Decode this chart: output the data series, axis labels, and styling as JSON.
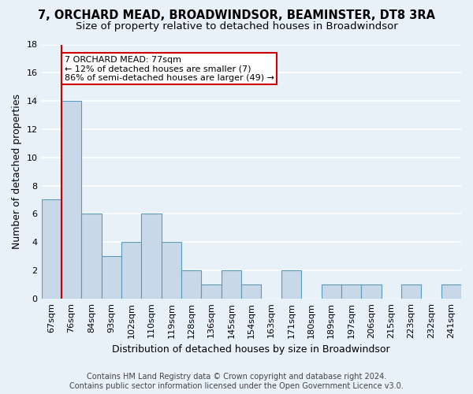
{
  "title": "7, ORCHARD MEAD, BROADWINDSOR, BEAMINSTER, DT8 3RA",
  "subtitle": "Size of property relative to detached houses in Broadwindsor",
  "xlabel": "Distribution of detached houses by size in Broadwindsor",
  "ylabel": "Number of detached properties",
  "footer_line1": "Contains HM Land Registry data © Crown copyright and database right 2024.",
  "footer_line2": "Contains public sector information licensed under the Open Government Licence v3.0.",
  "categories": [
    "67sqm",
    "76sqm",
    "84sqm",
    "93sqm",
    "102sqm",
    "110sqm",
    "119sqm",
    "128sqm",
    "136sqm",
    "145sqm",
    "154sqm",
    "163sqm",
    "171sqm",
    "180sqm",
    "189sqm",
    "197sqm",
    "206sqm",
    "215sqm",
    "223sqm",
    "232sqm",
    "241sqm"
  ],
  "values": [
    7,
    14,
    6,
    3,
    4,
    6,
    4,
    2,
    1,
    2,
    1,
    0,
    2,
    0,
    1,
    1,
    1,
    0,
    1,
    0,
    1
  ],
  "bar_color": "#c8d8e8",
  "bar_edge_color": "#5a9aba",
  "red_line_index": 1,
  "red_line_color": "#cc0000",
  "ylim": [
    0,
    18
  ],
  "yticks": [
    0,
    2,
    4,
    6,
    8,
    10,
    12,
    14,
    16,
    18
  ],
  "annotation_text": "7 ORCHARD MEAD: 77sqm\n← 12% of detached houses are smaller (7)\n86% of semi-detached houses are larger (49) →",
  "annotation_box_color": "#ffffff",
  "annotation_box_edge_color": "#cc0000",
  "bg_color": "#e8f0f8",
  "grid_color": "#ffffff",
  "title_fontsize": 10.5,
  "subtitle_fontsize": 9.5,
  "axis_label_fontsize": 9,
  "tick_fontsize": 8,
  "footer_fontsize": 7
}
